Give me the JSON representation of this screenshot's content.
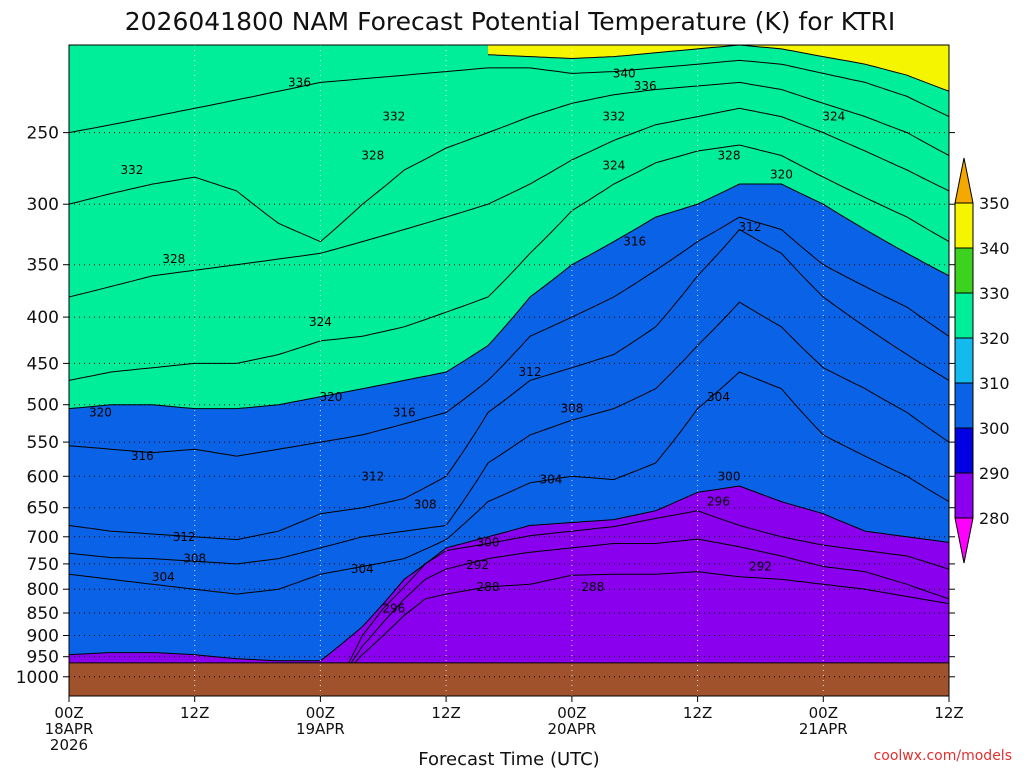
{
  "colors": {
    "c280": "#8a00ee",
    "c290": "#0000e0",
    "c300": "#0a63e6",
    "c310": "#14b9ee",
    "c320": "#00ee9a",
    "c330": "#3cd21e",
    "c340": "#f5f500",
    "c350": "#f5a800",
    "below": "#ff00ff",
    "ground": "#a0522d",
    "credit": "#e03030"
  },
  "chart_data": {
    "type": "heatmap",
    "title": "2026041800 NAM Forecast Potential Temperature (K) for KTRI",
    "xlabel": "Forecast Time (UTC)",
    "ylabel": "",
    "y_scale": "log-pressure",
    "ylim": [
      1050,
      200
    ],
    "y_ticks": [
      250,
      300,
      350,
      400,
      450,
      500,
      550,
      600,
      650,
      700,
      750,
      800,
      850,
      900,
      950,
      1000
    ],
    "x_ticks": [
      {
        "hour": 0,
        "l1": "00Z",
        "l2": "18APR",
        "l3": "2026"
      },
      {
        "hour": 12,
        "l1": "12Z",
        "l2": "",
        "l3": ""
      },
      {
        "hour": 24,
        "l1": "00Z",
        "l2": "19APR",
        "l3": ""
      },
      {
        "hour": 36,
        "l1": "12Z",
        "l2": "",
        "l3": ""
      },
      {
        "hour": 48,
        "l1": "00Z",
        "l2": "20APR",
        "l3": ""
      },
      {
        "hour": 60,
        "l1": "12Z",
        "l2": "",
        "l3": ""
      },
      {
        "hour": 72,
        "l1": "00Z",
        "l2": "21APR",
        "l3": ""
      },
      {
        "hour": 84,
        "l1": "12Z",
        "l2": "",
        "l3": ""
      }
    ],
    "xlim": [
      0,
      84
    ],
    "grid": true,
    "colorbar": {
      "levels": [
        280,
        290,
        300,
        310,
        320,
        330,
        340,
        350
      ],
      "placement": "right"
    },
    "contour_interval": 2,
    "ground_pressure": 965,
    "isentropes": [
      {
        "theta": 288,
        "hours": [
          26,
          28,
          30,
          32,
          34,
          36,
          40,
          44,
          48,
          52,
          56,
          60,
          64,
          68,
          72,
          76,
          80,
          84
        ],
        "pressures": [
          1000,
          945,
          900,
          855,
          820,
          810,
          795,
          790,
          772,
          770,
          770,
          765,
          775,
          780,
          790,
          800,
          815,
          830
        ]
      },
      {
        "theta": 292,
        "hours": [
          26,
          28,
          30,
          32,
          34,
          36,
          40,
          44,
          48,
          52,
          56,
          60,
          64,
          68,
          72,
          76,
          80,
          84
        ],
        "pressures": [
          1000,
          925,
          870,
          820,
          780,
          760,
          740,
          728,
          720,
          712,
          712,
          704,
          718,
          735,
          755,
          765,
          790,
          820
        ]
      },
      {
        "theta": 296,
        "hours": [
          26,
          28,
          30,
          32,
          34,
          36,
          40,
          44,
          48,
          52,
          56,
          60,
          64,
          68,
          72,
          76,
          80,
          84
        ],
        "pressures": [
          1000,
          900,
          840,
          795,
          750,
          725,
          712,
          698,
          690,
          682,
          668,
          655,
          680,
          700,
          715,
          725,
          735,
          760
        ]
      },
      {
        "theta": 300,
        "hours": [
          0,
          4,
          8,
          12,
          16,
          20,
          24,
          28,
          32,
          36,
          40,
          44,
          48,
          52,
          56,
          60,
          64,
          68,
          72,
          76,
          80,
          84
        ],
        "pressures": [
          945,
          940,
          940,
          945,
          955,
          960,
          960,
          880,
          780,
          720,
          700,
          680,
          675,
          670,
          655,
          625,
          615,
          640,
          660,
          690,
          700,
          710
        ]
      },
      {
        "theta": 304,
        "hours": [
          0,
          4,
          8,
          12,
          16,
          20,
          24,
          28,
          32,
          36,
          40,
          44,
          48,
          52,
          56,
          60,
          64,
          68,
          72,
          76,
          80,
          84
        ],
        "pressures": [
          770,
          780,
          790,
          800,
          810,
          800,
          770,
          755,
          740,
          705,
          640,
          610,
          600,
          605,
          580,
          505,
          460,
          480,
          540,
          570,
          600,
          640
        ]
      },
      {
        "theta": 308,
        "hours": [
          0,
          4,
          8,
          12,
          16,
          20,
          24,
          28,
          32,
          36,
          40,
          44,
          48,
          52,
          56,
          60,
          64,
          68,
          72,
          76,
          80,
          84
        ],
        "pressures": [
          730,
          738,
          740,
          745,
          750,
          740,
          720,
          700,
          690,
          680,
          580,
          540,
          520,
          505,
          480,
          430,
          385,
          410,
          455,
          480,
          510,
          550
        ]
      },
      {
        "theta": 312,
        "hours": [
          0,
          4,
          8,
          12,
          16,
          20,
          24,
          28,
          32,
          36,
          40,
          44,
          48,
          52,
          56,
          60,
          64,
          68,
          72,
          76,
          80,
          84
        ],
        "pressures": [
          680,
          690,
          695,
          700,
          705,
          690,
          660,
          650,
          635,
          600,
          510,
          470,
          455,
          440,
          410,
          360,
          320,
          340,
          380,
          410,
          440,
          470
        ]
      },
      {
        "theta": 316,
        "hours": [
          0,
          4,
          8,
          12,
          16,
          20,
          24,
          28,
          32,
          36,
          40,
          44,
          48,
          52,
          56,
          60,
          64,
          68,
          72,
          76,
          80,
          84
        ],
        "pressures": [
          555,
          560,
          565,
          560,
          570,
          560,
          550,
          540,
          525,
          510,
          470,
          420,
          400,
          380,
          355,
          330,
          310,
          320,
          350,
          370,
          390,
          420
        ]
      },
      {
        "theta": 320,
        "hours": [
          0,
          4,
          8,
          12,
          16,
          20,
          24,
          28,
          32,
          36,
          40,
          44,
          48,
          52,
          56,
          60,
          64,
          68,
          72,
          76,
          80,
          84
        ],
        "pressures": [
          505,
          500,
          500,
          505,
          505,
          500,
          490,
          480,
          470,
          460,
          430,
          380,
          350,
          330,
          310,
          300,
          285,
          285,
          300,
          320,
          340,
          360
        ]
      },
      {
        "theta": 324,
        "hours": [
          0,
          4,
          8,
          12,
          16,
          20,
          24,
          28,
          32,
          36,
          40,
          44,
          48,
          52,
          56,
          60,
          64,
          68,
          72,
          76,
          80,
          84
        ],
        "pressures": [
          470,
          460,
          455,
          450,
          450,
          440,
          425,
          420,
          410,
          395,
          380,
          340,
          305,
          285,
          270,
          262,
          258,
          265,
          280,
          295,
          310,
          330
        ]
      },
      {
        "theta": 328,
        "hours": [
          0,
          4,
          8,
          12,
          16,
          20,
          24,
          28,
          32,
          36,
          40,
          44,
          48,
          52,
          56,
          60,
          64,
          68,
          72,
          76,
          80,
          84
        ],
        "pressures": [
          380,
          370,
          360,
          355,
          350,
          345,
          340,
          330,
          320,
          310,
          300,
          285,
          268,
          255,
          245,
          240,
          235,
          240,
          250,
          262,
          275,
          290
        ]
      },
      {
        "theta": 332,
        "hours": [
          0,
          4,
          8,
          12,
          16,
          20,
          24,
          28,
          32,
          36,
          40,
          44,
          48,
          52,
          56,
          60,
          64,
          68,
          72,
          76,
          80,
          84
        ],
        "pressures": [
          300,
          292,
          285,
          280,
          290,
          315,
          330,
          300,
          275,
          260,
          250,
          240,
          232,
          227,
          224,
          222,
          220,
          224,
          232,
          240,
          250,
          265
        ]
      },
      {
        "theta": 336,
        "hours": [
          0,
          4,
          8,
          12,
          16,
          20,
          24,
          28,
          32,
          36,
          40,
          44,
          48,
          52,
          56,
          60,
          64,
          68,
          72,
          76,
          80,
          84
        ],
        "pressures": [
          250,
          245,
          240,
          235,
          230,
          225,
          220,
          218,
          216,
          214,
          212,
          212,
          215,
          214,
          212,
          210,
          208,
          210,
          215,
          220,
          228,
          240
        ]
      },
      {
        "theta": 340,
        "hours": [
          40,
          44,
          48,
          52,
          56,
          60,
          64,
          68,
          72,
          76,
          80,
          84
        ],
        "pressures": [
          205,
          206,
          207,
          206,
          204,
          202,
          200,
          202,
          206,
          210,
          216,
          225
        ]
      }
    ],
    "contour_labels": [
      {
        "text": "336",
        "hour": 22,
        "p": 220
      },
      {
        "text": "332",
        "hour": 31,
        "p": 240
      },
      {
        "text": "340",
        "hour": 53,
        "p": 215
      },
      {
        "text": "336",
        "hour": 55,
        "p": 222
      },
      {
        "text": "332",
        "hour": 52,
        "p": 240
      },
      {
        "text": "324",
        "hour": 73,
        "p": 240
      },
      {
        "text": "332",
        "hour": 6,
        "p": 275
      },
      {
        "text": "328",
        "hour": 29,
        "p": 265
      },
      {
        "text": "324",
        "hour": 52,
        "p": 272
      },
      {
        "text": "328",
        "hour": 63,
        "p": 265
      },
      {
        "text": "320",
        "hour": 68,
        "p": 278
      },
      {
        "text": "312",
        "hour": 65,
        "p": 318
      },
      {
        "text": "316",
        "hour": 54,
        "p": 330
      },
      {
        "text": "328",
        "hour": 10,
        "p": 345
      },
      {
        "text": "324",
        "hour": 24,
        "p": 405
      },
      {
        "text": "312",
        "hour": 44,
        "p": 460
      },
      {
        "text": "304",
        "hour": 62,
        "p": 490
      },
      {
        "text": "320",
        "hour": 25,
        "p": 490
      },
      {
        "text": "320",
        "hour": 3,
        "p": 510
      },
      {
        "text": "316",
        "hour": 32,
        "p": 510
      },
      {
        "text": "308",
        "hour": 48,
        "p": 505
      },
      {
        "text": "316",
        "hour": 7,
        "p": 570
      },
      {
        "text": "304",
        "hour": 46,
        "p": 605
      },
      {
        "text": "312",
        "hour": 29,
        "p": 600
      },
      {
        "text": "300",
        "hour": 63,
        "p": 600
      },
      {
        "text": "308",
        "hour": 34,
        "p": 645
      },
      {
        "text": "296",
        "hour": 62,
        "p": 640
      },
      {
        "text": "312",
        "hour": 11,
        "p": 700
      },
      {
        "text": "300",
        "hour": 40,
        "p": 710
      },
      {
        "text": "308",
        "hour": 12,
        "p": 740
      },
      {
        "text": "292",
        "hour": 39,
        "p": 752
      },
      {
        "text": "304",
        "hour": 28,
        "p": 760
      },
      {
        "text": "292",
        "hour": 66,
        "p": 755
      },
      {
        "text": "304",
        "hour": 9,
        "p": 775
      },
      {
        "text": "288",
        "hour": 40,
        "p": 795
      },
      {
        "text": "288",
        "hour": 50,
        "p": 795
      },
      {
        "text": "296",
        "hour": 31,
        "p": 840
      }
    ]
  },
  "credit": "coolwx.com/models"
}
